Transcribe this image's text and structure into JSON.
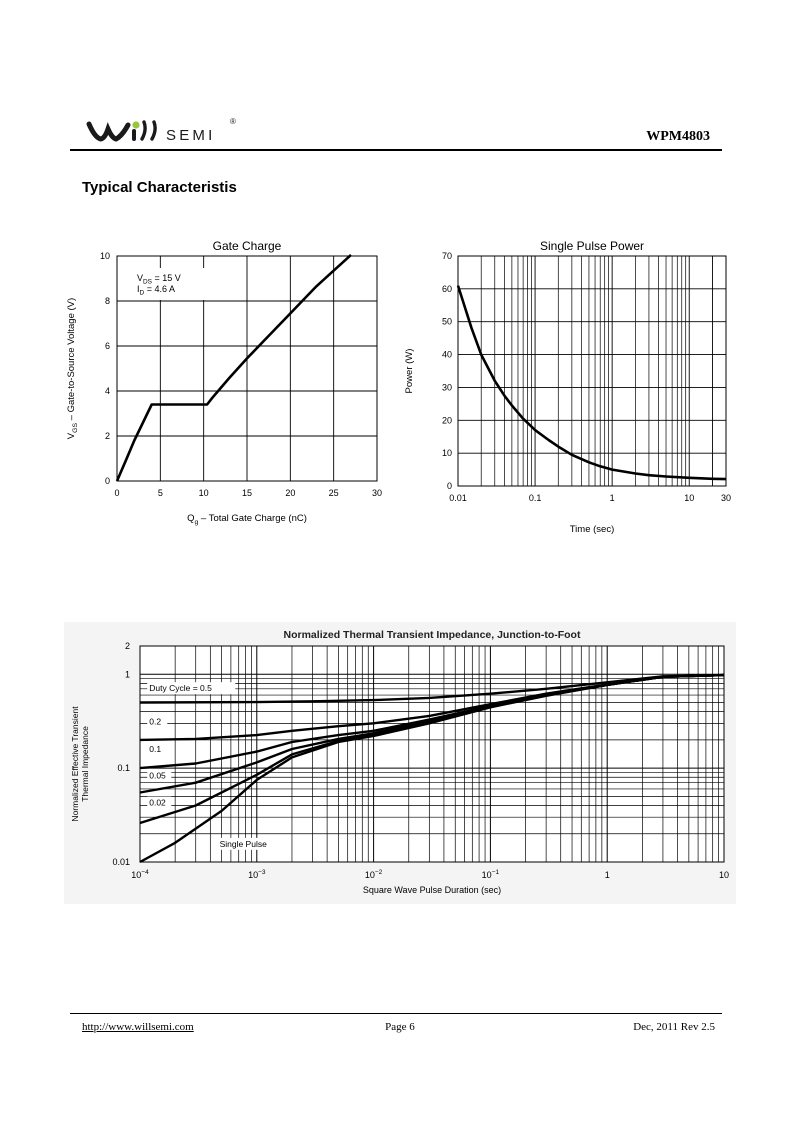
{
  "header": {
    "logo_text": "SEMI",
    "logo_mark": "®",
    "part_number": "WPM4803"
  },
  "section_title": "Typical Characteristis",
  "chart_data": [
    {
      "type": "line",
      "title": "Gate Charge",
      "xlabel": "Q<sub>g</sub> – Total Gate Charge (nC)",
      "xlabel_parts": {
        "symbol": "Q",
        "sub": "g",
        "rest": " –  Total Gate Charge (nC)"
      },
      "ylabel_parts": {
        "symbol": "V",
        "sub": "GS",
        "rest": " –  Gate-to-Source Voltage (V)"
      },
      "xlim": [
        0,
        30
      ],
      "ylim": [
        0,
        10
      ],
      "xticks": [
        0,
        5,
        10,
        15,
        20,
        25,
        30
      ],
      "yticks": [
        0,
        2,
        4,
        6,
        8,
        10
      ],
      "grid": true,
      "annotations": [
        {
          "symbol": "V",
          "sub": "DS",
          "text": " = 15 V"
        },
        {
          "symbol": "I",
          "sub": "D",
          "text": " = 4.6 A"
        }
      ],
      "series": [
        {
          "x": [
            0,
            1,
            2,
            3,
            4,
            5,
            7,
            9,
            10.4,
            11,
            12,
            13,
            15,
            17,
            19,
            21,
            23,
            25,
            26,
            27
          ],
          "y": [
            0,
            0.9,
            1.8,
            2.6,
            3.4,
            3.4,
            3.4,
            3.4,
            3.4,
            3.7,
            4.15,
            4.6,
            5.45,
            6.25,
            7.05,
            7.85,
            8.65,
            9.35,
            9.7,
            10.05
          ]
        }
      ]
    },
    {
      "type": "line",
      "title": "Single Pulse Power",
      "xlabel": "Time (sec)",
      "ylabel": "Power  (W)",
      "xscale": "log",
      "xlim": [
        0.01,
        30
      ],
      "ylim": [
        0,
        70
      ],
      "xticks": [
        0.01,
        0.1,
        1,
        10,
        30
      ],
      "xtick_labels": [
        "0.01",
        "0.1",
        "1",
        "10",
        "30"
      ],
      "yticks": [
        0,
        10,
        20,
        30,
        40,
        50,
        60,
        70
      ],
      "grid": true,
      "series": [
        {
          "x": [
            0.01,
            0.015,
            0.02,
            0.03,
            0.04,
            0.05,
            0.07,
            0.1,
            0.15,
            0.2,
            0.3,
            0.5,
            0.7,
            1,
            2,
            3,
            5,
            10,
            20,
            30
          ],
          "y": [
            61,
            48,
            40,
            32,
            27.5,
            24.5,
            20.5,
            17,
            14,
            12,
            9.5,
            7.2,
            6,
            5,
            3.8,
            3.3,
            2.9,
            2.5,
            2.2,
            2.1
          ]
        }
      ]
    },
    {
      "type": "line",
      "title": "Normalized Thermal Transient Impedance, Junction-to-Foot",
      "xlabel": "Square Wave Pulse Duration (sec)",
      "ylabel_lines": [
        "Normalized Effective Transient",
        "Thermal Impedance"
      ],
      "xscale": "log",
      "yscale": "log",
      "xlim": [
        0.0001,
        10
      ],
      "ylim": [
        0.01,
        2
      ],
      "xtick_labels": [
        {
          "base": "10",
          "exp": "−4",
          "value": 0.0001
        },
        {
          "base": "10",
          "exp": "−3",
          "value": 0.001
        },
        {
          "base": "10",
          "exp": "−2",
          "value": 0.01
        },
        {
          "base": "10",
          "exp": "−1",
          "value": 0.1
        },
        {
          "base": "1",
          "exp": "",
          "value": 1
        },
        {
          "base": "10",
          "exp": "",
          "value": 10
        }
      ],
      "yticks": [
        0.01,
        0.1,
        1,
        2
      ],
      "ytick_labels": [
        "0.01",
        "0.1",
        "1",
        "2"
      ],
      "grid": true,
      "series": [
        {
          "name": "Duty Cycle = 0.5",
          "x": [
            0.0001,
            0.001,
            0.003,
            0.01,
            0.03,
            0.1,
            0.3,
            1,
            3,
            10
          ],
          "y": [
            0.5,
            0.505,
            0.515,
            0.53,
            0.56,
            0.62,
            0.7,
            0.82,
            0.95,
            0.98
          ]
        },
        {
          "name": "0.2",
          "x": [
            0.0001,
            0.0003,
            0.001,
            0.002,
            0.005,
            0.01,
            0.03,
            0.1,
            0.3,
            1,
            3,
            10
          ],
          "y": [
            0.2,
            0.205,
            0.225,
            0.25,
            0.28,
            0.3,
            0.36,
            0.48,
            0.62,
            0.78,
            0.94,
            0.98
          ]
        },
        {
          "name": "0.1",
          "x": [
            0.0001,
            0.0003,
            0.001,
            0.002,
            0.005,
            0.01,
            0.03,
            0.1,
            0.3,
            1,
            3,
            10
          ],
          "y": [
            0.1,
            0.112,
            0.15,
            0.19,
            0.225,
            0.25,
            0.33,
            0.46,
            0.61,
            0.77,
            0.94,
            0.98
          ]
        },
        {
          "name": "0.05",
          "x": [
            0.0001,
            0.0003,
            0.001,
            0.002,
            0.005,
            0.01,
            0.03,
            0.1,
            0.3,
            1,
            3,
            10
          ],
          "y": [
            0.055,
            0.07,
            0.115,
            0.16,
            0.205,
            0.235,
            0.32,
            0.455,
            0.6,
            0.77,
            0.94,
            0.98
          ]
        },
        {
          "name": "0.02",
          "x": [
            0.0001,
            0.0003,
            0.001,
            0.002,
            0.005,
            0.01,
            0.03,
            0.1,
            0.3,
            1,
            3,
            10
          ],
          "y": [
            0.026,
            0.04,
            0.085,
            0.14,
            0.195,
            0.225,
            0.31,
            0.45,
            0.6,
            0.77,
            0.94,
            0.98
          ]
        },
        {
          "name": "Single Pulse",
          "x": [
            0.0001,
            0.0002,
            0.0005,
            0.001,
            0.002,
            0.005,
            0.01,
            0.03,
            0.1,
            0.3,
            1,
            3,
            10
          ],
          "y": [
            0.01,
            0.016,
            0.035,
            0.075,
            0.13,
            0.19,
            0.22,
            0.3,
            0.445,
            0.59,
            0.77,
            0.94,
            0.98
          ]
        }
      ]
    }
  ],
  "footer": {
    "url": "http://www.willsemi.com",
    "page": "Page 6",
    "revision": "Dec, 2011 Rev 2.5"
  }
}
